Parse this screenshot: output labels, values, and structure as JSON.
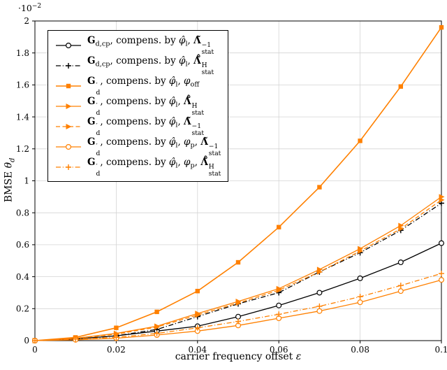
{
  "figure": {
    "y_exponent_html": "·10<sup>−2</sup>",
    "xlabel_html": "carrier frequency offset <i>ε</i>",
    "ylabel_html": "BMSE <i>θ</i><sub><i>d</i></sub>"
  },
  "chart_data": {
    "type": "line",
    "title": "",
    "xlabel": "carrier frequency offset ε",
    "ylabel": "BMSE θ_d",
    "y_units_note": "values in units of 10^-2",
    "xlim": [
      0,
      0.1
    ],
    "ylim": [
      0,
      2
    ],
    "x_ticks": [
      0,
      0.02,
      0.04,
      0.06,
      0.08,
      0.1
    ],
    "x_tick_labels": [
      "0",
      "0.02",
      "0.04",
      "0.06",
      "0.08",
      "0.1"
    ],
    "y_ticks": [
      0,
      0.2,
      0.4,
      0.6,
      0.8,
      1,
      1.2,
      1.4,
      1.6,
      1.8,
      2
    ],
    "y_tick_labels": [
      "0",
      "0.2",
      "0.4",
      "0.6",
      "0.8",
      "1",
      "1.2",
      "1.4",
      "1.6",
      "1.8",
      "2"
    ],
    "grid": true,
    "legend_position": "top-left",
    "grid_color": "#d4d4d4",
    "x": [
      0,
      0.01,
      0.02,
      0.03,
      0.04,
      0.05,
      0.06,
      0.07,
      0.08,
      0.09,
      0.1
    ],
    "series": [
      {
        "id": "gdcp-inv",
        "name": "G_{d,cp}, compens. by φ̂_l, Λ̃_stat^{-1}",
        "label_html": "<b>G</b><sub>d,cp</sub>, compens. by <i>φ̂</i><sub>l</sub>, <b>Λ̃</b><span class='ss'><span>−1</span><span>stat</span></span>",
        "color": "#000000",
        "dash": "solid",
        "marker": "circle-open",
        "width": 1.3,
        "values": [
          0,
          0.01,
          0.03,
          0.06,
          0.09,
          0.15,
          0.22,
          0.3,
          0.39,
          0.49,
          0.61
        ]
      },
      {
        "id": "gdcp-h",
        "name": "G_{d,cp}, compens. by φ̂_l, Λ̃̂_stat^H",
        "label_html": "<b>G</b><sub>d,cp</sub>, compens. by <i>φ̂</i><sub>l</sub>, <b>Λ̃̂</b><span class='ss'><span>H</span><span>stat</span></span>",
        "color": "#000000",
        "dash": "dashdot",
        "marker": "plus",
        "width": 1.3,
        "values": [
          0,
          0.01,
          0.03,
          0.07,
          0.15,
          0.23,
          0.3,
          0.43,
          0.55,
          0.69,
          0.86
        ]
      },
      {
        "id": "gd-off",
        "name": "G'_d, compens. by φ̂_l, φ_off",
        "label_html": "<b>G</b><span class='ss'><span>′</span><span>d</span></span>, compens. by <i>φ̂</i><sub>l</sub>, <i>φ</i><sub>off</sub>",
        "color": "#ff8000",
        "dash": "solid",
        "marker": "square-filled",
        "width": 1.6,
        "values": [
          0,
          0.02,
          0.08,
          0.18,
          0.31,
          0.49,
          0.71,
          0.96,
          1.25,
          1.59,
          1.96
        ]
      },
      {
        "id": "gd-h",
        "name": "G'_d, compens. by φ̂_l, Λ̃̂_stat^H",
        "label_html": "<b>G</b><span class='ss'><span>′</span><span>d</span></span>, compens. by <i>φ̂</i><sub>l</sub>, <b>Λ̃̂</b><span class='ss'><span>H</span><span>stat</span></span>",
        "color": "#ff8000",
        "dash": "solid",
        "marker": "triangle-right",
        "width": 1.3,
        "values": [
          0,
          0.015,
          0.045,
          0.09,
          0.17,
          0.245,
          0.325,
          0.445,
          0.575,
          0.72,
          0.9
        ]
      },
      {
        "id": "gd-inv",
        "name": "G'_d, compens. by φ̂_l, Λ̃_stat^{-1}",
        "label_html": "<b>G</b><span class='ss'><span>′</span><span>d</span></span>, compens. by <i>φ̂</i><sub>l</sub>, <b>Λ̃</b><span class='ss'><span>−1</span><span>stat</span></span>",
        "color": "#ff8000",
        "dash": "dashed",
        "marker": "triangle-right",
        "width": 1.3,
        "values": [
          0,
          0.015,
          0.04,
          0.085,
          0.16,
          0.235,
          0.315,
          0.43,
          0.56,
          0.7,
          0.88
        ]
      },
      {
        "id": "gd-p-inv",
        "name": "G'_d, compens. by φ̂_l, φ_p, Λ̃_stat^{-1}",
        "label_html": "<b>G</b><span class='ss'><span>′</span><span>d</span></span>, compens. by <i>φ̂</i><sub>l</sub>, <i>φ</i><sub>p</sub>, <b>Λ̃</b><span class='ss'><span>−1</span><span>stat</span></span>",
        "color": "#ff8000",
        "dash": "solid",
        "marker": "circle-open",
        "width": 1.3,
        "values": [
          0,
          0.005,
          0.015,
          0.035,
          0.06,
          0.095,
          0.14,
          0.185,
          0.24,
          0.31,
          0.38
        ]
      },
      {
        "id": "gd-p-h",
        "name": "G'_d, compens. by φ̂_l, φ_p, Λ̃̂_stat^H",
        "label_html": "<b>G</b><span class='ss'><span>′</span><span>d</span></span>, compens. by <i>φ̂</i><sub>l</sub>, <i>φ</i><sub>p</sub>, <b>Λ̃̂</b><span class='ss'><span>H</span><span>stat</span></span>",
        "color": "#ff8000",
        "dash": "dashdot",
        "marker": "plus",
        "width": 1.3,
        "values": [
          0,
          0.01,
          0.02,
          0.045,
          0.08,
          0.12,
          0.165,
          0.215,
          0.275,
          0.345,
          0.42
        ]
      }
    ]
  }
}
